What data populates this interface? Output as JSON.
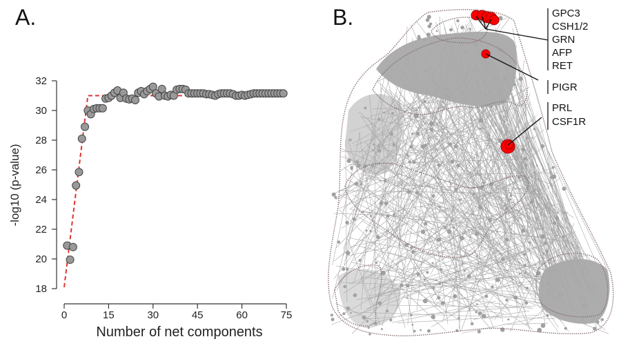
{
  "chart_data": [
    {
      "type": "scatter",
      "panel_label": "A.",
      "xlabel": "Number of net components",
      "ylabel": "-log10 (p-value)",
      "xlim": [
        0,
        75
      ],
      "ylim": [
        18,
        32
      ],
      "x_ticks": [
        "0",
        "15",
        "30",
        "45",
        "60",
        "75"
      ],
      "y_ticks": [
        "18",
        "20",
        "22",
        "24",
        "26",
        "28",
        "30",
        "32"
      ],
      "grid": false,
      "point_color": "#999999",
      "fit_line_color": "#e03030",
      "points": [
        [
          1,
          20.9
        ],
        [
          2,
          19.95
        ],
        [
          3,
          20.8
        ],
        [
          4,
          24.95
        ],
        [
          5,
          25.85
        ],
        [
          6,
          28.1
        ],
        [
          7,
          28.9
        ],
        [
          8,
          30.0
        ],
        [
          9,
          29.75
        ],
        [
          10,
          30.1
        ],
        [
          11,
          30.15
        ],
        [
          12,
          30.15
        ],
        [
          13,
          30.15
        ],
        [
          14,
          30.8
        ],
        [
          15,
          30.85
        ],
        [
          16,
          31.0
        ],
        [
          17,
          31.2
        ],
        [
          18,
          31.35
        ],
        [
          19,
          30.85
        ],
        [
          20,
          31.2
        ],
        [
          21,
          30.8
        ],
        [
          22,
          30.75
        ],
        [
          23,
          30.8
        ],
        [
          24,
          30.7
        ],
        [
          25,
          31.2
        ],
        [
          26,
          31.3
        ],
        [
          27,
          31.1
        ],
        [
          28,
          31.3
        ],
        [
          29,
          31.45
        ],
        [
          30,
          31.6
        ],
        [
          31,
          31.15
        ],
        [
          32,
          30.95
        ],
        [
          33,
          31.45
        ],
        [
          34,
          31.0
        ],
        [
          35,
          30.95
        ],
        [
          36,
          31.05
        ],
        [
          37,
          31.0
        ],
        [
          38,
          31.4
        ],
        [
          39,
          31.45
        ],
        [
          40,
          31.45
        ],
        [
          41,
          31.4
        ],
        [
          42,
          31.15
        ],
        [
          43,
          31.15
        ],
        [
          44,
          31.15
        ],
        [
          45,
          31.15
        ],
        [
          46,
          31.15
        ],
        [
          47,
          31.15
        ],
        [
          48,
          31.1
        ],
        [
          49,
          31.1
        ],
        [
          50,
          31.05
        ],
        [
          51,
          31.0
        ],
        [
          52,
          31.1
        ],
        [
          53,
          31.15
        ],
        [
          54,
          31.15
        ],
        [
          55,
          31.15
        ],
        [
          56,
          31.15
        ],
        [
          57,
          31.1
        ],
        [
          58,
          31.0
        ],
        [
          59,
          31.0
        ],
        [
          60,
          31.05
        ],
        [
          61,
          31.0
        ],
        [
          62,
          31.05
        ],
        [
          63,
          31.1
        ],
        [
          64,
          31.15
        ],
        [
          65,
          31.15
        ],
        [
          66,
          31.15
        ],
        [
          67,
          31.15
        ],
        [
          68,
          31.15
        ],
        [
          69,
          31.15
        ],
        [
          70,
          31.15
        ],
        [
          71,
          31.15
        ],
        [
          72,
          31.15
        ],
        [
          73,
          31.15
        ],
        [
          74,
          31.15
        ]
      ],
      "fit_line": [
        [
          0,
          18.1
        ],
        [
          8,
          31.0
        ],
        [
          75,
          31.0
        ]
      ]
    },
    {
      "type": "network",
      "panel_label": "B.",
      "highlight_color": "#ff0000",
      "node_color": "#b4b4b4",
      "labeled_genes": [
        "GPC3",
        "CSH1/2",
        "GRN",
        "AFP",
        "RET",
        "PIGR",
        "PRL",
        "CSF1R"
      ],
      "label_groups": [
        {
          "genes": [
            "GPC3",
            "CSH1/2",
            "GRN",
            "AFP",
            "RET"
          ]
        },
        {
          "genes": [
            "PIGR"
          ]
        },
        {
          "genes": [
            "PRL",
            "CSF1R"
          ]
        }
      ]
    }
  ]
}
